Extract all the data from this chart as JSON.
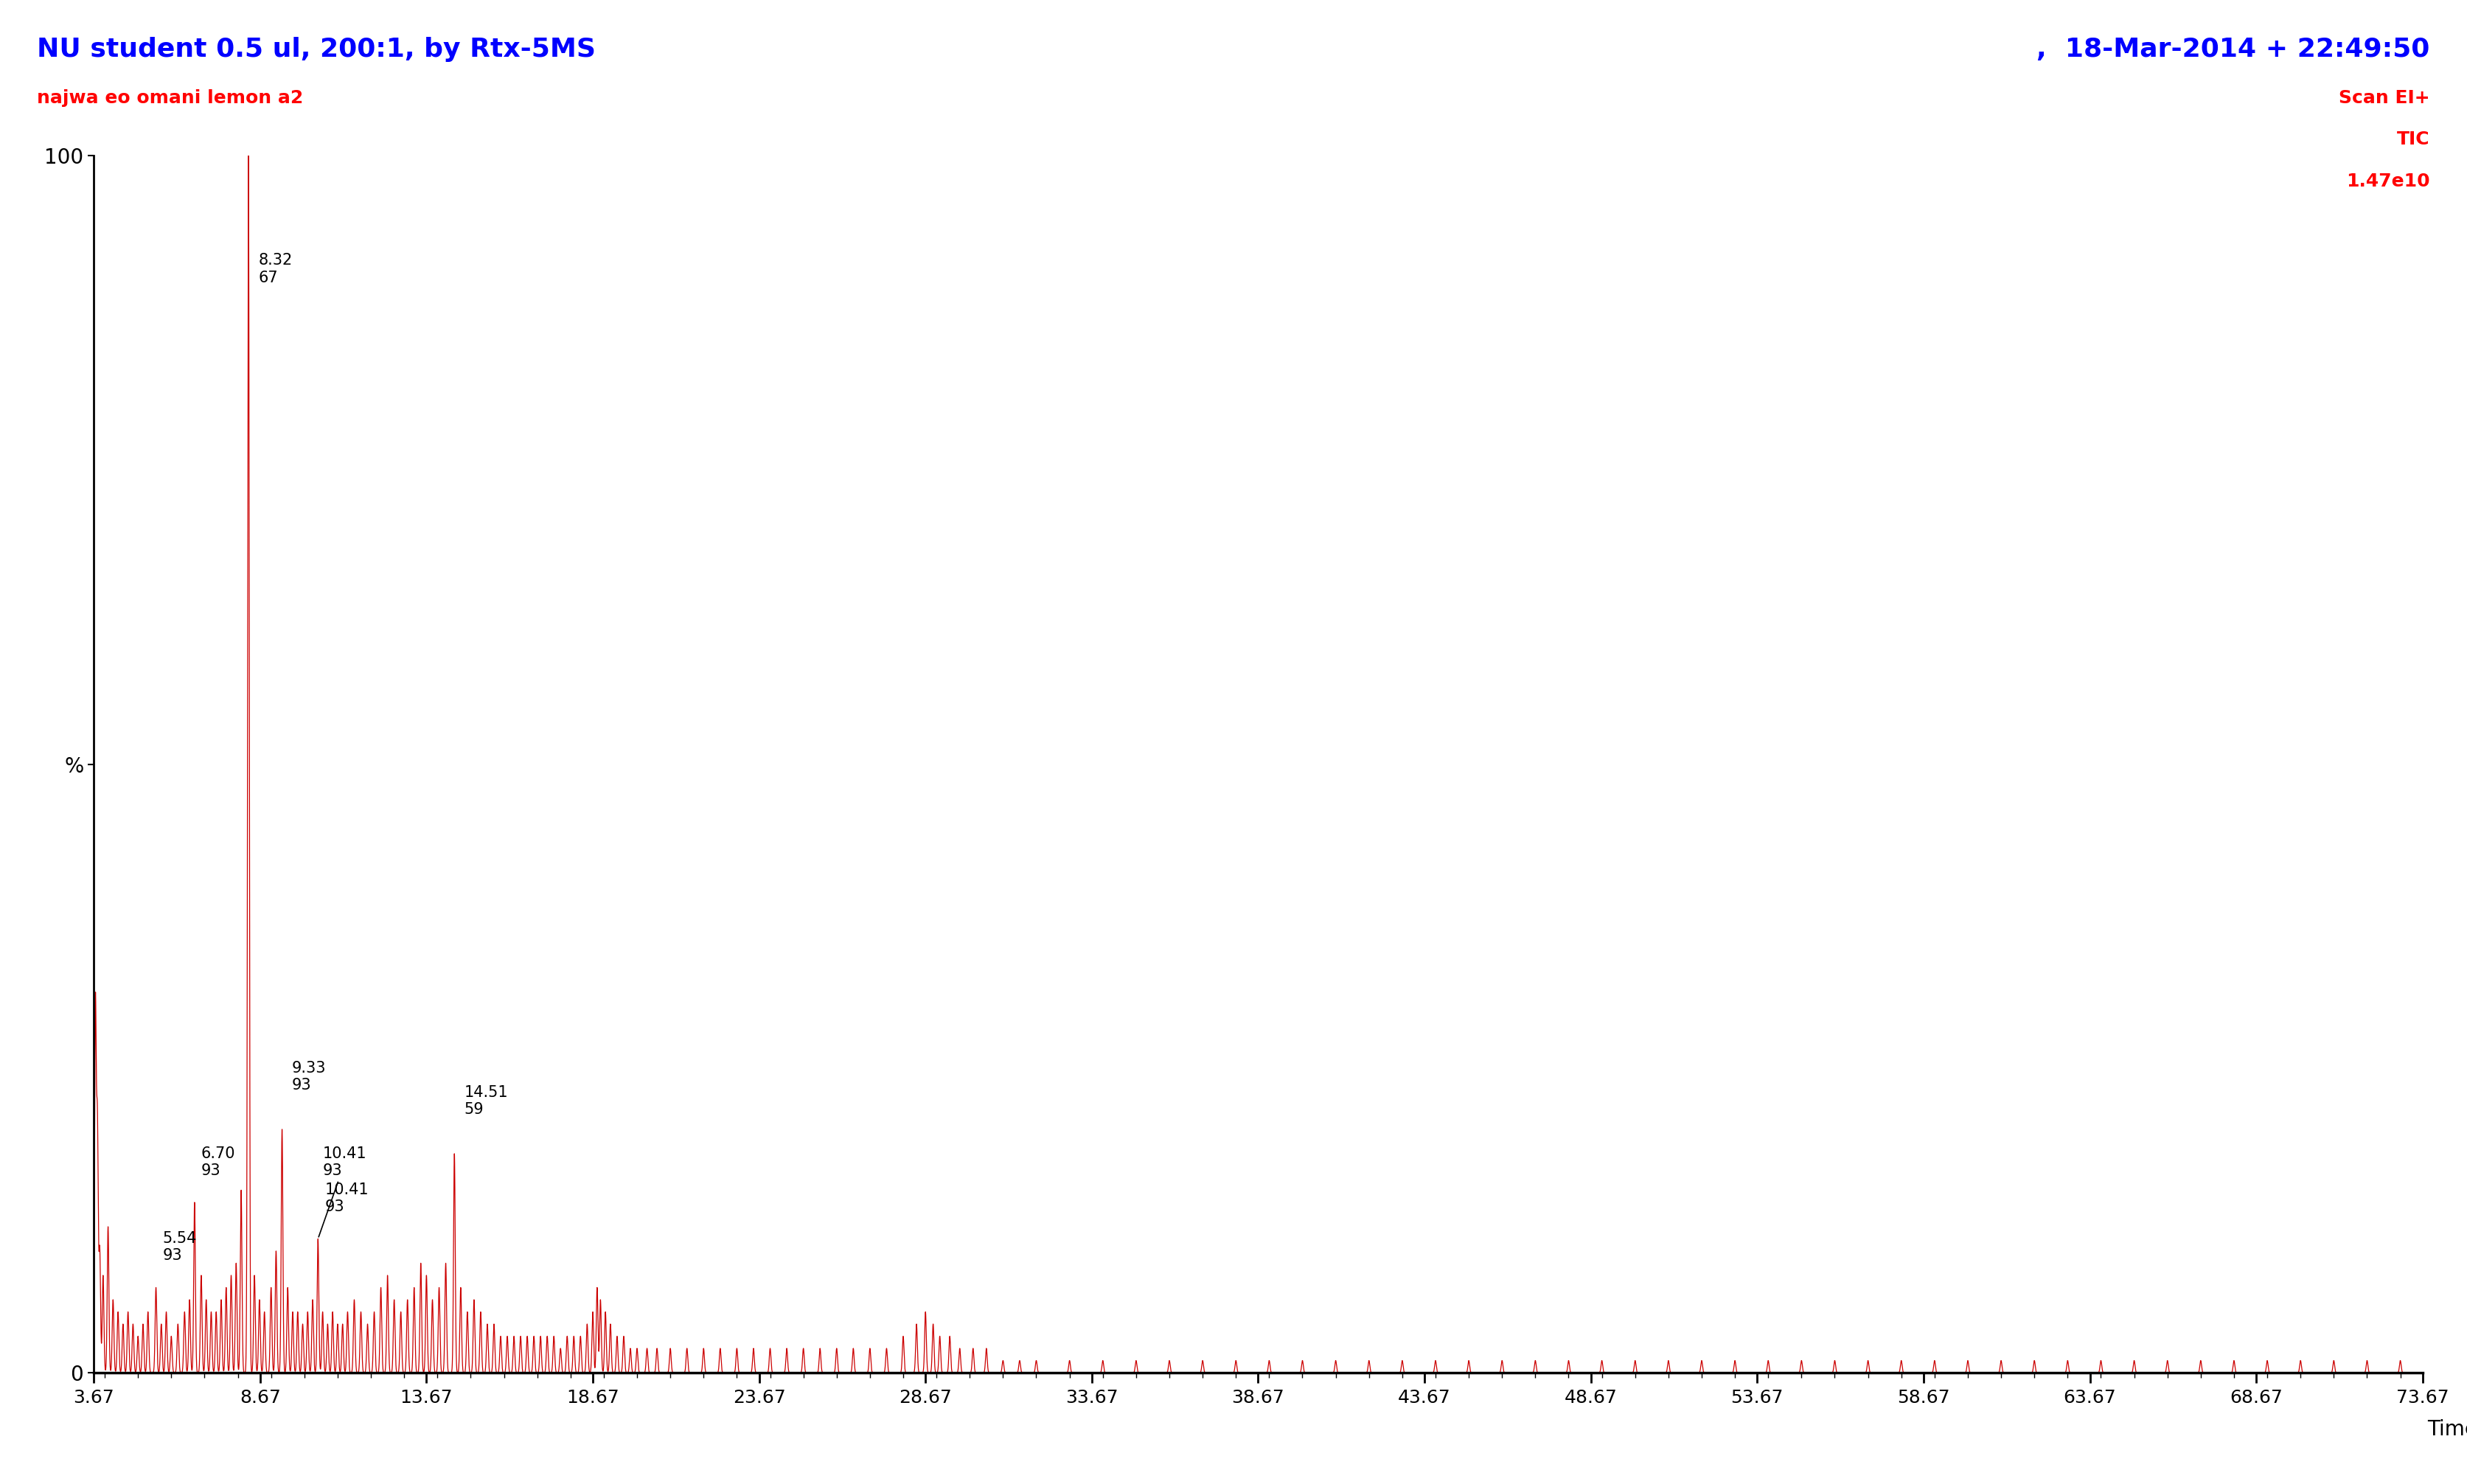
{
  "title_left": "NU student 0.5 ul, 200:1, by Rtx-5MS",
  "title_right": ",  18-Mar-2014 + 22:49:50",
  "subtitle_left": "najwa eo omani lemon a2",
  "subtitle_right_lines": [
    "Scan EI+",
    "TIC",
    "1.47e10"
  ],
  "title_color_left": "#0000FF",
  "title_color_right": "#0000FF",
  "subtitle_color_left": "#FF0000",
  "subtitle_color_right": "#FF0000",
  "xmin": 3.67,
  "xmax": 73.67,
  "ymin": 0,
  "ymax": 100,
  "ylabel_percent": "%",
  "xlabel": "Time",
  "xticks": [
    3.67,
    8.67,
    13.67,
    18.67,
    23.67,
    28.67,
    33.67,
    38.67,
    43.67,
    48.67,
    53.67,
    58.67,
    63.67,
    68.67,
    73.67
  ],
  "peaks": [
    {
      "rt": 3.72,
      "height": 30
    },
    {
      "rt": 3.78,
      "height": 20
    },
    {
      "rt": 3.85,
      "height": 10
    },
    {
      "rt": 3.95,
      "height": 8
    },
    {
      "rt": 4.1,
      "height": 12
    },
    {
      "rt": 4.25,
      "height": 6
    },
    {
      "rt": 4.4,
      "height": 5
    },
    {
      "rt": 4.55,
      "height": 4
    },
    {
      "rt": 4.7,
      "height": 5
    },
    {
      "rt": 4.85,
      "height": 4
    },
    {
      "rt": 5.0,
      "height": 3
    },
    {
      "rt": 5.15,
      "height": 4
    },
    {
      "rt": 5.3,
      "height": 5
    },
    {
      "rt": 5.54,
      "height": 7,
      "label_rt": "5.54",
      "label_mz": "93"
    },
    {
      "rt": 5.7,
      "height": 4
    },
    {
      "rt": 5.85,
      "height": 5
    },
    {
      "rt": 6.0,
      "height": 3
    },
    {
      "rt": 6.2,
      "height": 4
    },
    {
      "rt": 6.4,
      "height": 5
    },
    {
      "rt": 6.55,
      "height": 6
    },
    {
      "rt": 6.7,
      "height": 14,
      "label_rt": "6.70",
      "label_mz": "93"
    },
    {
      "rt": 6.9,
      "height": 8
    },
    {
      "rt": 7.05,
      "height": 6
    },
    {
      "rt": 7.2,
      "height": 5
    },
    {
      "rt": 7.35,
      "height": 5
    },
    {
      "rt": 7.5,
      "height": 6
    },
    {
      "rt": 7.65,
      "height": 7
    },
    {
      "rt": 7.8,
      "height": 8
    },
    {
      "rt": 7.95,
      "height": 9
    },
    {
      "rt": 8.1,
      "height": 15
    },
    {
      "rt": 8.32,
      "height": 100,
      "label_rt": "8.32",
      "label_mz": "67"
    },
    {
      "rt": 8.5,
      "height": 8
    },
    {
      "rt": 8.65,
      "height": 6
    },
    {
      "rt": 8.8,
      "height": 5
    },
    {
      "rt": 9.0,
      "height": 7
    },
    {
      "rt": 9.15,
      "height": 10
    },
    {
      "rt": 9.33,
      "height": 20,
      "label_rt": "9.33",
      "label_mz": "93"
    },
    {
      "rt": 9.5,
      "height": 7
    },
    {
      "rt": 9.65,
      "height": 5
    },
    {
      "rt": 9.8,
      "height": 5
    },
    {
      "rt": 9.95,
      "height": 4
    },
    {
      "rt": 10.1,
      "height": 5
    },
    {
      "rt": 10.25,
      "height": 6
    },
    {
      "rt": 10.41,
      "height": 11,
      "label_rt": "10.41",
      "label_mz": "93"
    },
    {
      "rt": 10.55,
      "height": 5
    },
    {
      "rt": 10.7,
      "height": 4
    },
    {
      "rt": 10.85,
      "height": 5
    },
    {
      "rt": 11.0,
      "height": 4
    },
    {
      "rt": 11.15,
      "height": 4
    },
    {
      "rt": 11.3,
      "height": 5
    },
    {
      "rt": 11.5,
      "height": 6
    },
    {
      "rt": 11.7,
      "height": 5
    },
    {
      "rt": 11.9,
      "height": 4
    },
    {
      "rt": 12.1,
      "height": 5
    },
    {
      "rt": 12.3,
      "height": 7
    },
    {
      "rt": 12.5,
      "height": 8
    },
    {
      "rt": 12.7,
      "height": 6
    },
    {
      "rt": 12.9,
      "height": 5
    },
    {
      "rt": 13.1,
      "height": 6
    },
    {
      "rt": 13.3,
      "height": 7
    },
    {
      "rt": 13.5,
      "height": 9
    },
    {
      "rt": 13.67,
      "height": 8
    },
    {
      "rt": 13.85,
      "height": 6
    },
    {
      "rt": 14.05,
      "height": 7
    },
    {
      "rt": 14.25,
      "height": 9
    },
    {
      "rt": 14.51,
      "height": 18,
      "label_rt": "14.51",
      "label_mz": "59"
    },
    {
      "rt": 14.7,
      "height": 7
    },
    {
      "rt": 14.9,
      "height": 5
    },
    {
      "rt": 15.1,
      "height": 6
    },
    {
      "rt": 15.3,
      "height": 5
    },
    {
      "rt": 15.5,
      "height": 4
    },
    {
      "rt": 15.7,
      "height": 4
    },
    {
      "rt": 15.9,
      "height": 3
    },
    {
      "rt": 16.1,
      "height": 3
    },
    {
      "rt": 16.3,
      "height": 3
    },
    {
      "rt": 16.5,
      "height": 3
    },
    {
      "rt": 16.7,
      "height": 3
    },
    {
      "rt": 16.9,
      "height": 3
    },
    {
      "rt": 17.1,
      "height": 3
    },
    {
      "rt": 17.3,
      "height": 3
    },
    {
      "rt": 17.5,
      "height": 3
    },
    {
      "rt": 17.7,
      "height": 2
    },
    {
      "rt": 17.9,
      "height": 3
    },
    {
      "rt": 18.1,
      "height": 3
    },
    {
      "rt": 18.3,
      "height": 3
    },
    {
      "rt": 18.5,
      "height": 4
    },
    {
      "rt": 18.67,
      "height": 5
    },
    {
      "rt": 18.8,
      "height": 7
    },
    {
      "rt": 18.9,
      "height": 6
    },
    {
      "rt": 19.05,
      "height": 5
    },
    {
      "rt": 19.2,
      "height": 4
    },
    {
      "rt": 19.4,
      "height": 3
    },
    {
      "rt": 19.6,
      "height": 3
    },
    {
      "rt": 19.8,
      "height": 2
    },
    {
      "rt": 20.0,
      "height": 2
    },
    {
      "rt": 20.3,
      "height": 2
    },
    {
      "rt": 20.6,
      "height": 2
    },
    {
      "rt": 21.0,
      "height": 2
    },
    {
      "rt": 21.5,
      "height": 2
    },
    {
      "rt": 22.0,
      "height": 2
    },
    {
      "rt": 22.5,
      "height": 2
    },
    {
      "rt": 23.0,
      "height": 2
    },
    {
      "rt": 23.5,
      "height": 2
    },
    {
      "rt": 24.0,
      "height": 2
    },
    {
      "rt": 24.5,
      "height": 2
    },
    {
      "rt": 25.0,
      "height": 2
    },
    {
      "rt": 25.5,
      "height": 2
    },
    {
      "rt": 26.0,
      "height": 2
    },
    {
      "rt": 26.5,
      "height": 2
    },
    {
      "rt": 27.0,
      "height": 2
    },
    {
      "rt": 27.5,
      "height": 2
    },
    {
      "rt": 28.0,
      "height": 3
    },
    {
      "rt": 28.4,
      "height": 4
    },
    {
      "rt": 28.67,
      "height": 5
    },
    {
      "rt": 28.9,
      "height": 4
    },
    {
      "rt": 29.1,
      "height": 3
    },
    {
      "rt": 29.4,
      "height": 3
    },
    {
      "rt": 29.7,
      "height": 2
    },
    {
      "rt": 30.1,
      "height": 2
    },
    {
      "rt": 30.5,
      "height": 2
    },
    {
      "rt": 31.0,
      "height": 1
    },
    {
      "rt": 31.5,
      "height": 1
    },
    {
      "rt": 32.0,
      "height": 1
    },
    {
      "rt": 33.0,
      "height": 1
    },
    {
      "rt": 34.0,
      "height": 1
    },
    {
      "rt": 35.0,
      "height": 1
    },
    {
      "rt": 36.0,
      "height": 1
    },
    {
      "rt": 37.0,
      "height": 1
    },
    {
      "rt": 38.0,
      "height": 1
    },
    {
      "rt": 39.0,
      "height": 1
    },
    {
      "rt": 40.0,
      "height": 1
    },
    {
      "rt": 41.0,
      "height": 1
    },
    {
      "rt": 42.0,
      "height": 1
    },
    {
      "rt": 43.0,
      "height": 1
    },
    {
      "rt": 44.0,
      "height": 1
    },
    {
      "rt": 45.0,
      "height": 1
    },
    {
      "rt": 46.0,
      "height": 1
    },
    {
      "rt": 47.0,
      "height": 1
    },
    {
      "rt": 48.0,
      "height": 1
    },
    {
      "rt": 49.0,
      "height": 1
    },
    {
      "rt": 50.0,
      "height": 1
    },
    {
      "rt": 51.0,
      "height": 1
    },
    {
      "rt": 52.0,
      "height": 1
    },
    {
      "rt": 53.0,
      "height": 1
    },
    {
      "rt": 54.0,
      "height": 1
    },
    {
      "rt": 55.0,
      "height": 1
    },
    {
      "rt": 56.0,
      "height": 1
    },
    {
      "rt": 57.0,
      "height": 1
    },
    {
      "rt": 58.0,
      "height": 1
    },
    {
      "rt": 59.0,
      "height": 1
    },
    {
      "rt": 60.0,
      "height": 1
    },
    {
      "rt": 61.0,
      "height": 1
    },
    {
      "rt": 62.0,
      "height": 1
    },
    {
      "rt": 63.0,
      "height": 1
    },
    {
      "rt": 64.0,
      "height": 1
    },
    {
      "rt": 65.0,
      "height": 1
    },
    {
      "rt": 66.0,
      "height": 1
    },
    {
      "rt": 67.0,
      "height": 1
    },
    {
      "rt": 68.0,
      "height": 1
    },
    {
      "rt": 69.0,
      "height": 1
    },
    {
      "rt": 70.0,
      "height": 1
    },
    {
      "rt": 71.0,
      "height": 1
    },
    {
      "rt": 72.0,
      "height": 1
    },
    {
      "rt": 73.0,
      "height": 1
    }
  ],
  "peak_color": "#CC0000",
  "background_color": "#FFFFFF",
  "axis_color": "#000000",
  "title_fontsize": 26,
  "subtitle_fontsize": 18,
  "label_fontsize": 15,
  "axis_label_fontsize": 18
}
